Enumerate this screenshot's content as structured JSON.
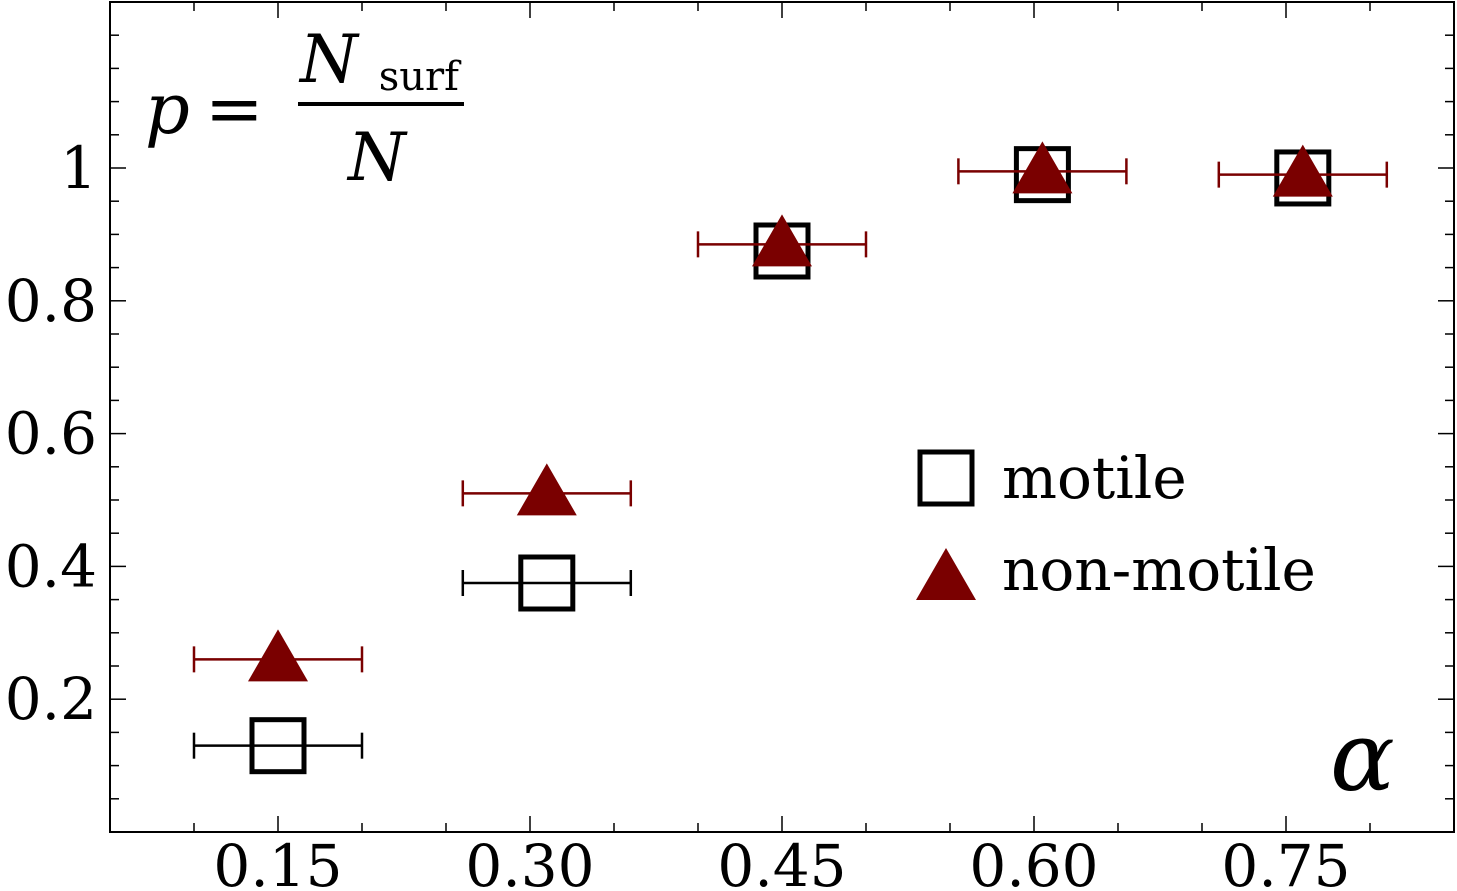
{
  "chart_data": {
    "type": "scatter",
    "xlabel": "α",
    "formula": {
      "lhs": "p",
      "eq": "=",
      "numerator_base": "N",
      "numerator_sub": "surf",
      "denominator": "N"
    },
    "xlim": [
      0.05,
      0.85
    ],
    "ylim": [
      0.0,
      1.25
    ],
    "x_ticks": [
      0.15,
      0.3,
      0.45,
      0.6,
      0.75
    ],
    "x_tick_labels": [
      "0.15",
      "0.30",
      "0.45",
      "0.60",
      "0.75"
    ],
    "y_ticks": [
      0.2,
      0.4,
      0.6,
      0.8,
      1.0
    ],
    "y_tick_labels": [
      "0.2",
      "0.4",
      "0.6",
      "0.8",
      "1"
    ],
    "legend_position": "right-middle",
    "grid": false,
    "series": [
      {
        "name": "motile",
        "marker": "square-open",
        "color": "#000000",
        "x": [
          0.15,
          0.31,
          0.45,
          0.605,
          0.76
        ],
        "y": [
          0.13,
          0.375,
          0.875,
          0.99,
          0.985
        ],
        "xerr": [
          [
            0.1,
            0.2
          ],
          [
            0.26,
            0.36
          ],
          null,
          null,
          null
        ]
      },
      {
        "name": "non-motile",
        "marker": "triangle-filled",
        "color": "#7a0000",
        "x": [
          0.15,
          0.31,
          0.45,
          0.605,
          0.76
        ],
        "y": [
          0.26,
          0.51,
          0.885,
          0.995,
          0.99
        ],
        "xerr": [
          [
            0.1,
            0.2
          ],
          [
            0.26,
            0.36
          ],
          [
            0.4,
            0.5
          ],
          [
            0.555,
            0.655
          ],
          [
            0.71,
            0.81
          ]
        ]
      }
    ]
  }
}
